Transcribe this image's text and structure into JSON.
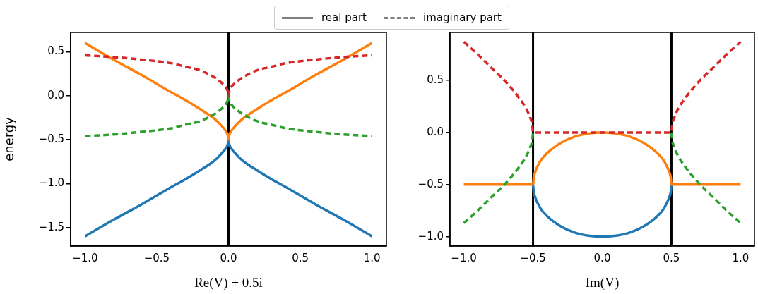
{
  "chart_data": [
    {
      "type": "line",
      "xlabel": "Re(V) + 0.5i",
      "ylabel": "energy",
      "annotations": [
        "real part",
        "imaginary part"
      ],
      "grid": false,
      "marker": "none",
      "x": [
        -1,
        -0.8,
        -0.6,
        -0.4,
        -0.3,
        -0.2,
        -0.1,
        -0.05,
        -0.02,
        -0.005,
        0,
        0.005,
        0.02,
        0.05,
        0.1,
        0.2,
        0.3,
        0.4,
        0.6,
        0.8,
        1
      ],
      "xlim": [
        -1.1,
        1.1
      ],
      "xticks": [
        {
          "value": -1,
          "label": "−1.0"
        },
        {
          "value": -0.5,
          "label": "−0.5"
        },
        {
          "value": 0,
          "label": "0.0"
        },
        {
          "value": 0.5,
          "label": "0.5"
        },
        {
          "value": 1,
          "label": "1.0"
        }
      ],
      "ylim": [
        -1.71,
        0.72
      ],
      "yticks": [
        {
          "value": -1.5,
          "label": "−1.5"
        },
        {
          "value": -1,
          "label": "−1.0"
        },
        {
          "value": -0.5,
          "label": "−0.5"
        },
        {
          "value": 0,
          "label": "0.0"
        },
        {
          "value": 0.5,
          "label": "0.5"
        }
      ],
      "ref_lines": [
        {
          "axis": "x",
          "value": 0,
          "color": "#000000"
        }
      ],
      "series": [
        {
          "color": "#1f77b4",
          "line_style": "solid",
          "values": [
            -1.6,
            -1.41,
            -1.23,
            -1.04,
            -0.95,
            -0.85,
            -0.74,
            -0.66,
            -0.6,
            -0.55,
            -0.5,
            -0.55,
            -0.6,
            -0.66,
            -0.74,
            -0.85,
            -0.95,
            -1.04,
            -1.23,
            -1.41,
            -1.6
          ]
        },
        {
          "color": "#ff7f0e",
          "line_style": "solid",
          "values": [
            0.6,
            0.41,
            0.23,
            0.04,
            -0.05,
            -0.15,
            -0.26,
            -0.34,
            -0.4,
            -0.45,
            -0.5,
            -0.45,
            -0.4,
            -0.34,
            -0.26,
            -0.15,
            -0.05,
            0.04,
            0.23,
            0.41,
            0.6
          ]
        },
        {
          "color": "#2ca02c",
          "line_style": "dashed",
          "values": [
            -0.46,
            -0.44,
            -0.41,
            -0.37,
            -0.33,
            -0.29,
            -0.21,
            -0.15,
            -0.1,
            -0.05,
            0,
            -0.05,
            -0.1,
            -0.15,
            -0.21,
            -0.29,
            -0.33,
            -0.37,
            -0.41,
            -0.44,
            -0.46
          ]
        },
        {
          "color": "#d62728",
          "line_style": "dashed",
          "values": [
            0.46,
            0.44,
            0.41,
            0.37,
            0.33,
            0.29,
            0.21,
            0.15,
            0.1,
            0.05,
            0,
            0.05,
            0.1,
            0.15,
            0.21,
            0.29,
            0.33,
            0.37,
            0.41,
            0.44,
            0.46
          ]
        }
      ]
    },
    {
      "type": "line",
      "xlabel": "Im(V)",
      "grid": false,
      "marker": "none",
      "x": [
        -1,
        -0.9,
        -0.8,
        -0.7,
        -0.6,
        -0.55,
        -0.52,
        -0.505,
        -0.5,
        -0.495,
        -0.49,
        -0.45,
        -0.4,
        -0.3,
        -0.2,
        -0.1,
        0,
        0.1,
        0.2,
        0.3,
        0.4,
        0.45,
        0.49,
        0.495,
        0.5,
        0.505,
        0.52,
        0.55,
        0.6,
        0.7,
        0.8,
        0.9,
        1
      ],
      "xlim": [
        -1.1,
        1.1
      ],
      "xticks": [
        {
          "value": -1,
          "label": "−1.0"
        },
        {
          "value": -0.5,
          "label": "−0.5"
        },
        {
          "value": 0,
          "label": "0.0"
        },
        {
          "value": 0.5,
          "label": "0.5"
        },
        {
          "value": 1,
          "label": "1.0"
        }
      ],
      "ylim": [
        -1.09,
        0.96
      ],
      "yticks": [
        {
          "value": -1,
          "label": "−1.0"
        },
        {
          "value": -0.5,
          "label": "−0.5"
        },
        {
          "value": 0,
          "label": "0.0"
        },
        {
          "value": 0.5,
          "label": "0.5"
        }
      ],
      "ref_lines": [
        {
          "axis": "x",
          "value": -0.5,
          "color": "#000000"
        },
        {
          "axis": "x",
          "value": 0.5,
          "color": "#000000"
        }
      ],
      "series": [
        {
          "color": "#1f77b4",
          "line_style": "solid",
          "values": [
            null,
            null,
            null,
            null,
            null,
            null,
            null,
            null,
            -0.5,
            -0.57,
            -0.6,
            -0.72,
            -0.8,
            -0.9,
            -0.96,
            -0.99,
            -1,
            -0.99,
            -0.96,
            -0.9,
            -0.8,
            -0.72,
            -0.6,
            -0.57,
            -0.5,
            null,
            null,
            null,
            null,
            null,
            null,
            null,
            null
          ]
        },
        {
          "color": "#ff7f0e",
          "line_style": "solid",
          "values": [
            -0.5,
            -0.5,
            -0.5,
            -0.5,
            -0.5,
            -0.5,
            -0.5,
            -0.5,
            -0.5,
            -0.43,
            -0.4,
            -0.28,
            -0.2,
            -0.1,
            -0.04,
            -0.01,
            0,
            -0.01,
            -0.04,
            -0.1,
            -0.2,
            -0.28,
            -0.4,
            -0.43,
            -0.5,
            -0.5,
            -0.5,
            -0.5,
            -0.5,
            -0.5,
            -0.5,
            -0.5,
            -0.5
          ]
        },
        {
          "color": "#2ca02c",
          "line_style": "dashed",
          "values": [
            -0.87,
            -0.75,
            -0.62,
            -0.49,
            -0.33,
            -0.23,
            -0.14,
            -0.07,
            0,
            null,
            null,
            null,
            null,
            null,
            null,
            null,
            null,
            null,
            null,
            null,
            null,
            null,
            null,
            null,
            0,
            -0.07,
            -0.14,
            -0.23,
            -0.33,
            -0.49,
            -0.62,
            -0.75,
            -0.87
          ]
        },
        {
          "color": "#d62728",
          "line_style": "dashed",
          "values": [
            0.87,
            0.75,
            0.62,
            0.49,
            0.33,
            0.23,
            0.14,
            0.07,
            0,
            0,
            0,
            0,
            0,
            0,
            0,
            0,
            0,
            0,
            0,
            0,
            0,
            0,
            0,
            0,
            0,
            0.07,
            0.14,
            0.23,
            0.33,
            0.49,
            0.62,
            0.75,
            0.87
          ]
        }
      ]
    }
  ]
}
